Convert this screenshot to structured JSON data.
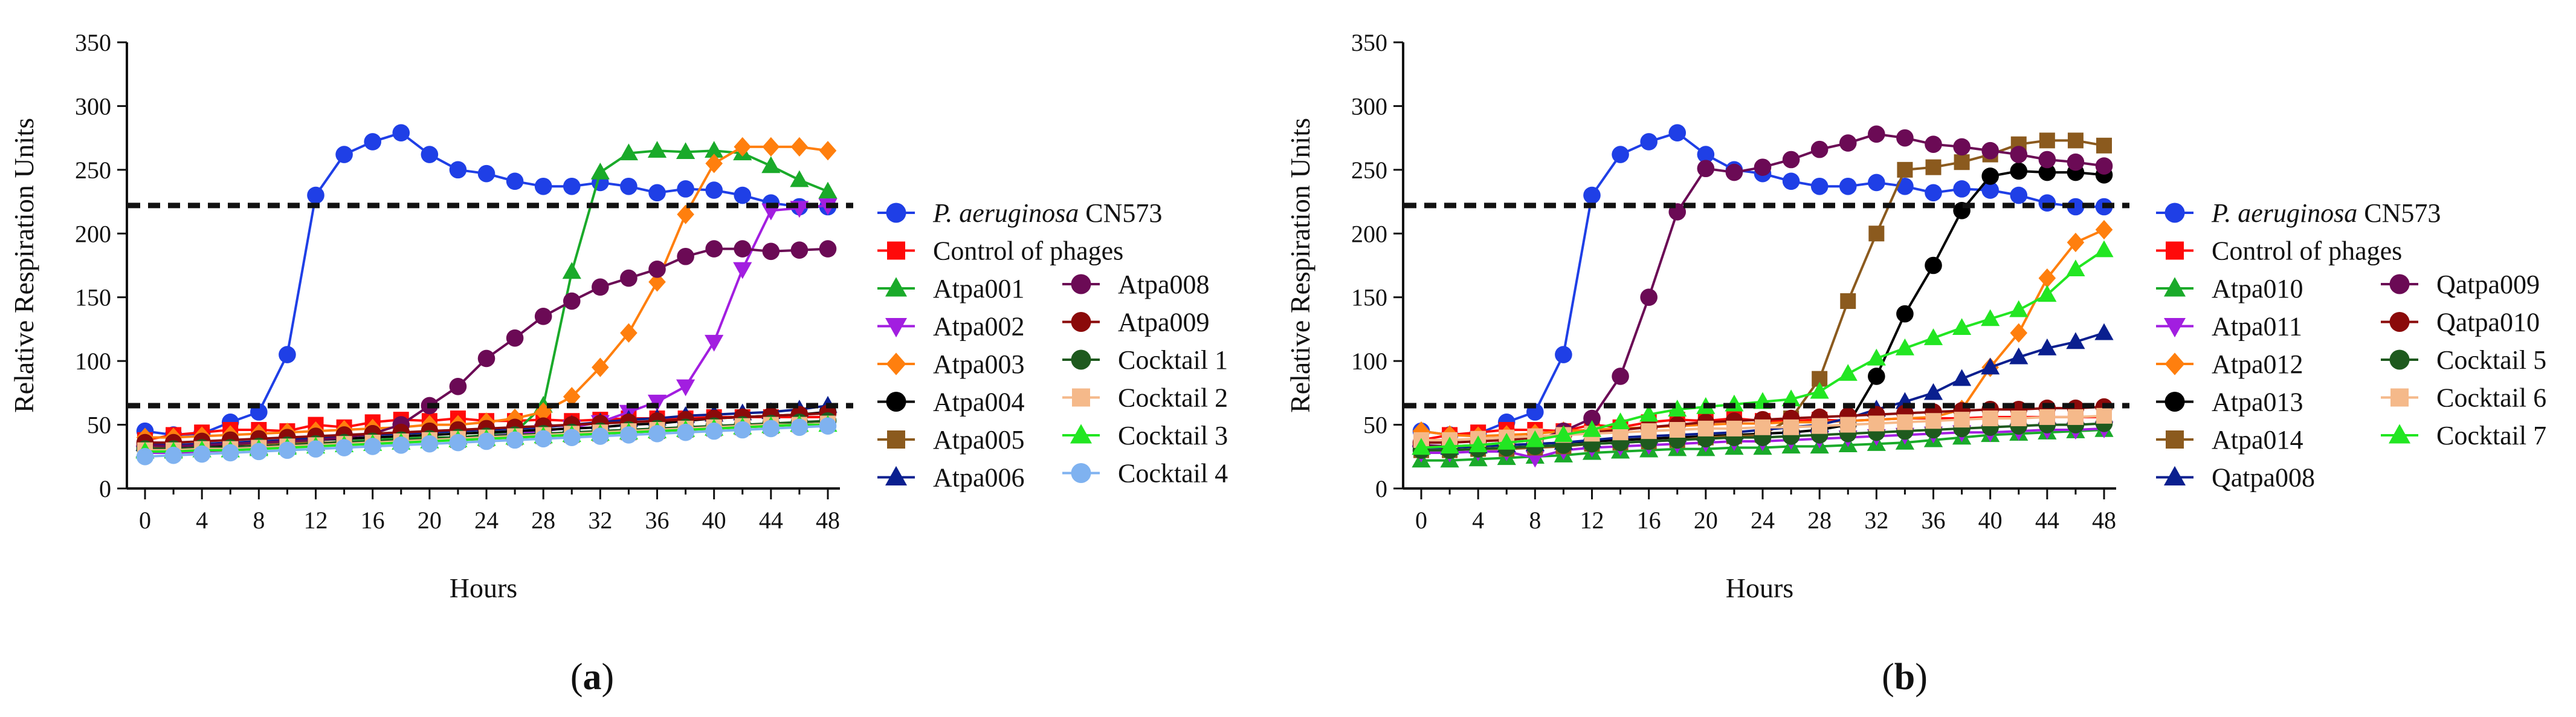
{
  "chart_data": [
    {
      "type": "line",
      "panel_label": "(a)",
      "xlabel": "Hours",
      "ylabel": "Relative Respiration Units",
      "xlim": [
        0,
        48
      ],
      "ylim": [
        0,
        350
      ],
      "x_ticks": [
        "0",
        "4",
        "8",
        "12",
        "16",
        "20",
        "24",
        "28",
        "32",
        "36",
        "40",
        "44",
        "48"
      ],
      "y_ticks": [
        "0",
        "50",
        "100",
        "150",
        "200",
        "250",
        "300",
        "350"
      ],
      "threshold_lines": [
        222,
        65
      ],
      "x": [
        0,
        2,
        4,
        6,
        8,
        10,
        12,
        14,
        16,
        18,
        20,
        22,
        24,
        26,
        28,
        30,
        32,
        34,
        36,
        38,
        40,
        42,
        44,
        46,
        48
      ],
      "series": [
        {
          "name": "P. aeruginosa CN573",
          "name_italic": "P. aeruginosa",
          "name_rest": " CN573",
          "color": "#1f3fe6",
          "marker": "circle",
          "values": [
            45,
            42,
            43,
            52,
            60,
            105,
            230,
            262,
            272,
            279,
            262,
            250,
            247,
            241,
            237,
            237,
            240,
            237,
            232,
            235,
            234,
            230,
            224,
            221,
            221
          ]
        },
        {
          "name": "Control of phages",
          "color": "#ff0a0a",
          "marker": "square",
          "values": [
            38,
            42,
            44,
            46,
            46,
            45,
            50,
            48,
            52,
            54,
            53,
            55,
            53,
            53,
            54,
            53,
            54,
            55,
            55,
            55,
            56,
            56,
            56,
            56,
            56
          ]
        },
        {
          "name": "Atpa001",
          "color": "#1aaa2a",
          "marker": "triangle-up",
          "values": [
            30,
            30,
            30,
            30,
            32,
            33,
            35,
            37,
            38,
            39,
            40,
            40,
            42,
            44,
            65,
            170,
            248,
            263,
            265,
            264,
            265,
            263,
            253,
            242,
            233
          ]
        },
        {
          "name": "Atpa002",
          "color": "#a21ee0",
          "marker": "triangle-down",
          "values": [
            28,
            28,
            29,
            30,
            31,
            33,
            34,
            36,
            37,
            37,
            38,
            40,
            41,
            43,
            45,
            48,
            52,
            60,
            68,
            80,
            115,
            172,
            218,
            220,
            222
          ]
        },
        {
          "name": "Atpa003",
          "color": "#ff7f0e",
          "marker": "diamond",
          "values": [
            40,
            40,
            41,
            42,
            43,
            44,
            45,
            46,
            47,
            48,
            50,
            50,
            52,
            55,
            60,
            72,
            95,
            122,
            162,
            215,
            255,
            268,
            268,
            268,
            265
          ]
        },
        {
          "name": "Atpa004",
          "color": "#000000",
          "marker": "circle",
          "values": [
            32,
            32,
            33,
            34,
            35,
            36,
            38,
            39,
            40,
            41,
            42,
            43,
            44,
            45,
            46,
            47,
            48,
            50,
            51,
            53,
            55,
            56,
            57,
            58,
            60
          ]
        },
        {
          "name": "Atpa005",
          "color": "#8b5a1e",
          "marker": "square",
          "values": [
            33,
            33,
            34,
            35,
            35,
            36,
            36,
            36,
            37,
            37,
            38,
            38,
            39,
            40,
            41,
            42,
            43,
            44,
            45,
            46,
            47,
            48,
            49,
            50,
            51
          ]
        },
        {
          "name": "Atpa006",
          "color": "#0a1f8f",
          "marker": "triangle-up",
          "values": [
            35,
            34,
            35,
            36,
            37,
            38,
            40,
            41,
            42,
            43,
            44,
            45,
            46,
            47,
            48,
            50,
            52,
            54,
            55,
            57,
            58,
            59,
            60,
            62,
            65
          ]
        },
        {
          "name": "Atpa008",
          "color": "#6b0a55",
          "marker": "circle",
          "values": [
            34,
            33,
            34,
            35,
            36,
            37,
            38,
            40,
            43,
            50,
            65,
            80,
            102,
            118,
            135,
            147,
            158,
            165,
            172,
            182,
            188,
            188,
            186,
            187,
            188
          ]
        },
        {
          "name": "Atpa009",
          "color": "#8b0a0a",
          "marker": "circle",
          "values": [
            36,
            36,
            37,
            38,
            39,
            40,
            41,
            42,
            43,
            44,
            45,
            46,
            47,
            48,
            49,
            50,
            51,
            52,
            53,
            54,
            55,
            56,
            57,
            58,
            59
          ]
        },
        {
          "name": "Cocktail 1",
          "color": "#1e5a1e",
          "marker": "circle",
          "values": [
            31,
            31,
            32,
            32,
            33,
            34,
            35,
            36,
            37,
            38,
            39,
            40,
            41,
            42,
            43,
            44,
            45,
            46,
            47,
            48,
            49,
            50,
            51,
            52,
            53
          ]
        },
        {
          "name": "Cocktail 2",
          "color": "#f5b98a",
          "marker": "square",
          "values": [
            30,
            30,
            31,
            31,
            32,
            33,
            34,
            35,
            36,
            37,
            38,
            39,
            40,
            41,
            42,
            43,
            44,
            45,
            46,
            47,
            48,
            49,
            50,
            50,
            51
          ]
        },
        {
          "name": "Cocktail 3",
          "color": "#22e622",
          "marker": "triangle-up",
          "values": [
            29,
            29,
            30,
            30,
            31,
            32,
            33,
            34,
            35,
            36,
            37,
            38,
            39,
            40,
            41,
            42,
            43,
            44,
            45,
            46,
            47,
            48,
            49,
            50,
            50
          ]
        },
        {
          "name": "Cocktail 4",
          "color": "#7fb2f0",
          "marker": "circle",
          "values": [
            25,
            26,
            27,
            28,
            29,
            30,
            31,
            32,
            33,
            34,
            35,
            36,
            37,
            38,
            39,
            40,
            41,
            42,
            43,
            44,
            45,
            46,
            47,
            48,
            49
          ]
        }
      ]
    },
    {
      "type": "line",
      "panel_label": "(b)",
      "xlabel": "Hours",
      "ylabel": "Relative Respiration Units",
      "xlim": [
        0,
        48
      ],
      "ylim": [
        0,
        350
      ],
      "x_ticks": [
        "0",
        "4",
        "8",
        "12",
        "16",
        "20",
        "24",
        "28",
        "32",
        "36",
        "40",
        "44",
        "48"
      ],
      "y_ticks": [
        "0",
        "50",
        "100",
        "150",
        "200",
        "250",
        "300",
        "350"
      ],
      "threshold_lines": [
        222,
        65
      ],
      "x": [
        0,
        2,
        4,
        6,
        8,
        10,
        12,
        14,
        16,
        18,
        20,
        22,
        24,
        26,
        28,
        30,
        32,
        34,
        36,
        38,
        40,
        42,
        44,
        46,
        48
      ],
      "series": [
        {
          "name": "P. aeruginosa CN573",
          "name_italic": "P. aeruginosa",
          "name_rest": " CN573",
          "color": "#1f3fe6",
          "marker": "circle",
          "values": [
            45,
            42,
            43,
            52,
            60,
            105,
            230,
            262,
            272,
            279,
            262,
            250,
            247,
            241,
            237,
            237,
            240,
            237,
            232,
            235,
            234,
            230,
            224,
            221,
            221
          ]
        },
        {
          "name": "Control of phages",
          "color": "#ff0a0a",
          "marker": "square",
          "values": [
            38,
            42,
            44,
            46,
            46,
            45,
            50,
            48,
            52,
            54,
            53,
            55,
            53,
            53,
            54,
            53,
            54,
            55,
            55,
            55,
            56,
            56,
            56,
            56,
            56
          ]
        },
        {
          "name": "Atpa010",
          "color": "#1aaa2a",
          "marker": "triangle-up",
          "values": [
            22,
            22,
            23,
            24,
            25,
            26,
            28,
            29,
            30,
            31,
            31,
            32,
            32,
            33,
            33,
            34,
            35,
            36,
            38,
            40,
            42,
            43,
            44,
            45,
            46
          ]
        },
        {
          "name": "Atpa011",
          "color": "#a21ee0",
          "marker": "triangle-down",
          "values": [
            28,
            28,
            29,
            29,
            24,
            30,
            32,
            33,
            34,
            35,
            36,
            37,
            37,
            38,
            39,
            40,
            41,
            42,
            43,
            44,
            44,
            45,
            46,
            46,
            47
          ]
        },
        {
          "name": "Atpa012",
          "color": "#ff7f0e",
          "marker": "diamond",
          "values": [
            45,
            42,
            41,
            42,
            43,
            45,
            46,
            47,
            48,
            49,
            50,
            51,
            51,
            52,
            52,
            53,
            54,
            55,
            56,
            62,
            95,
            122,
            165,
            193,
            203
          ]
        },
        {
          "name": "Atpa013",
          "color": "#000000",
          "marker": "circle",
          "values": [
            33,
            32,
            33,
            34,
            35,
            36,
            37,
            38,
            39,
            40,
            41,
            42,
            43,
            44,
            46,
            50,
            88,
            137,
            175,
            218,
            245,
            249,
            248,
            248,
            246
          ]
        },
        {
          "name": "Atpa014",
          "color": "#8b5a1e",
          "marker": "square",
          "values": [
            30,
            30,
            31,
            31,
            32,
            33,
            35,
            36,
            37,
            38,
            40,
            41,
            42,
            55,
            86,
            147,
            200,
            250,
            252,
            256,
            262,
            270,
            273,
            273,
            269
          ]
        },
        {
          "name": "Qatpa008",
          "color": "#0a1f8f",
          "marker": "triangle-up",
          "values": [
            32,
            32,
            33,
            34,
            35,
            36,
            38,
            40,
            41,
            42,
            43,
            44,
            46,
            48,
            50,
            55,
            62,
            68,
            75,
            86,
            95,
            103,
            110,
            115,
            122
          ]
        },
        {
          "name": "Qatpa009",
          "color": "#6b0a55",
          "marker": "circle",
          "values": [
            34,
            33,
            34,
            36,
            38,
            45,
            55,
            88,
            150,
            217,
            251,
            248,
            252,
            258,
            266,
            271,
            278,
            275,
            270,
            268,
            265,
            262,
            258,
            256,
            253
          ]
        },
        {
          "name": "Qatpa010",
          "color": "#8b0a0a",
          "marker": "circle",
          "values": [
            36,
            36,
            37,
            38,
            40,
            42,
            44,
            46,
            48,
            50,
            52,
            53,
            54,
            55,
            56,
            57,
            58,
            59,
            60,
            61,
            62,
            62,
            63,
            63,
            64
          ]
        },
        {
          "name": "Cocktail 5",
          "color": "#1e5a1e",
          "marker": "circle",
          "values": [
            30,
            30,
            31,
            32,
            33,
            34,
            35,
            36,
            37,
            38,
            39,
            40,
            40,
            41,
            42,
            43,
            44,
            45,
            46,
            47,
            48,
            49,
            50,
            50,
            51
          ]
        },
        {
          "name": "Cocktail 6",
          "color": "#f5b98a",
          "marker": "square",
          "values": [
            38,
            38,
            39,
            40,
            41,
            42,
            43,
            44,
            45,
            46,
            47,
            47,
            48,
            48,
            49,
            50,
            51,
            52,
            53,
            54,
            55,
            55,
            56,
            56,
            57
          ]
        },
        {
          "name": "Cocktail 7",
          "color": "#22e622",
          "marker": "triangle-up",
          "values": [
            32,
            33,
            34,
            36,
            38,
            42,
            46,
            52,
            58,
            62,
            64,
            66,
            68,
            70,
            76,
            90,
            102,
            110,
            118,
            126,
            133,
            140,
            152,
            172,
            187
          ]
        }
      ]
    }
  ]
}
